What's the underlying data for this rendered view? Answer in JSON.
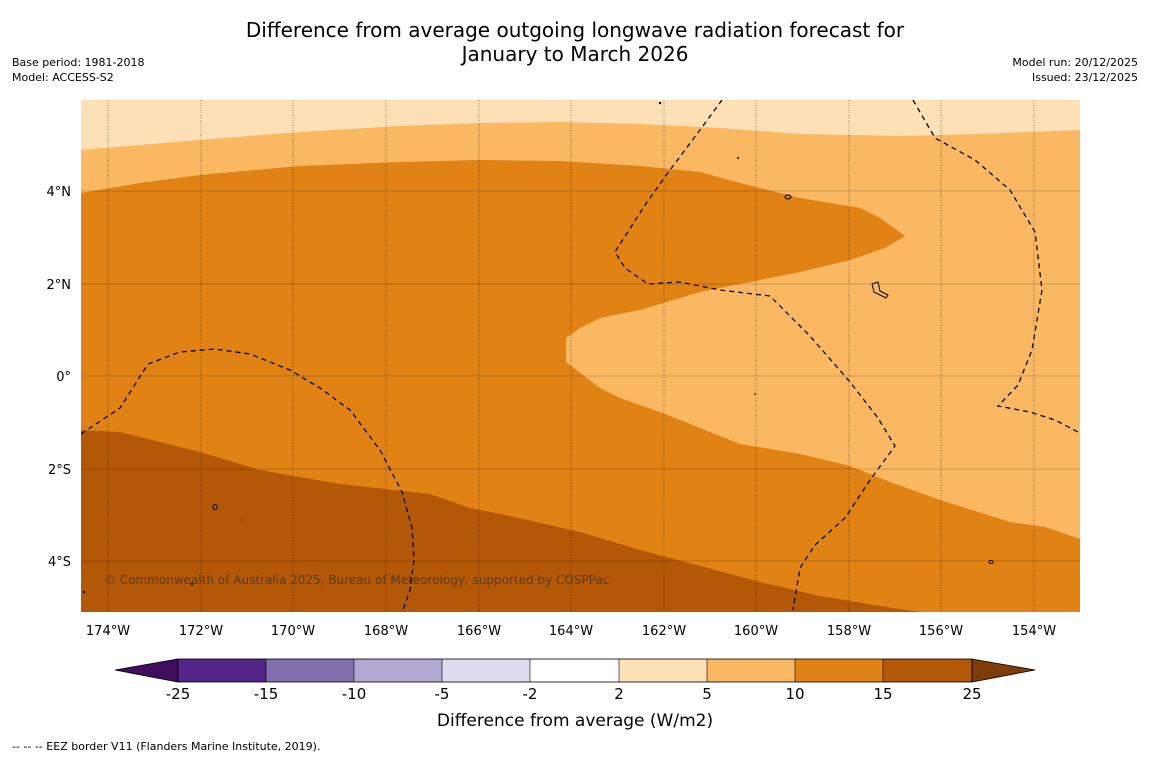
{
  "title": {
    "line1": "Difference from average outgoing longwave radiation forecast for",
    "line2": "January to March 2026"
  },
  "meta_left": {
    "base_period": "Base period: 1981-2018",
    "model": "Model: ACCESS-S2"
  },
  "meta_right": {
    "model_run": "Model run: 20/12/2025",
    "issued": "Issued: 23/12/2025"
  },
  "map": {
    "lon_labels": [
      "174°W",
      "172°W",
      "170°W",
      "168°W",
      "166°W",
      "164°W",
      "162°W",
      "160°W",
      "158°W",
      "156°W",
      "154°W"
    ],
    "lat_labels": [
      "4°N",
      "2°N",
      "0°",
      "2°S",
      "4°S"
    ],
    "copyright": "© Commonwealth of Australia 2025, Bureau of Meteorology, supported by COSPPac"
  },
  "colorbar": {
    "title": "Difference from average (W/m2)",
    "ticks": [
      "-25",
      "-15",
      "-10",
      "-5",
      "-2",
      "2",
      "5",
      "10",
      "15",
      "25"
    ],
    "colors": [
      "#3f0f5e",
      "#532588",
      "#7f6fac",
      "#b2a9d3",
      "#dcdbee",
      "#ffffff",
      "#fee0b6",
      "#fbb862",
      "#e08214",
      "#b35806",
      "#7f3b08"
    ]
  },
  "footer": {
    "legend": "--  --  -- EEZ border V11 (Flanders Marine Institute, 2019)."
  },
  "palette": {
    "band_2_5": "#fee0b6",
    "band_5_10": "#fbb862",
    "band_10_15": "#e08214",
    "band_15_25": "#b35806"
  }
}
